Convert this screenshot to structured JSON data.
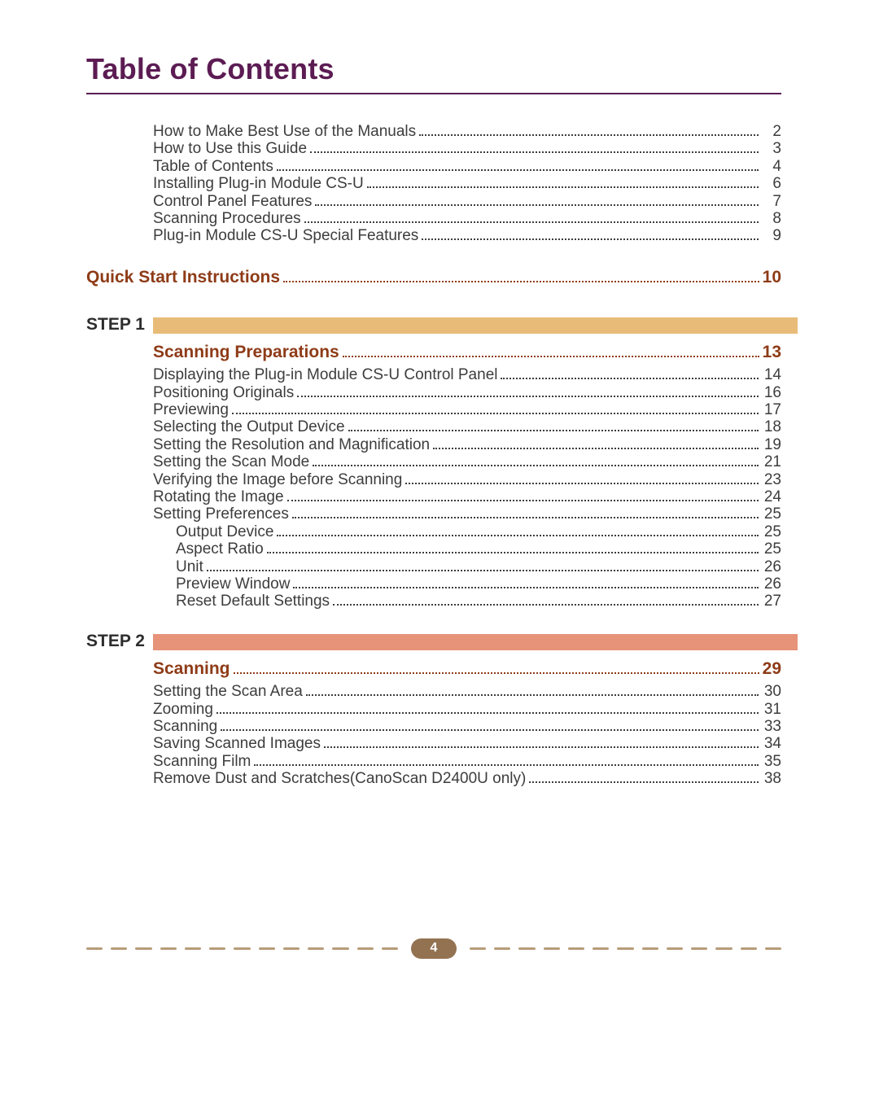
{
  "colors": {
    "title": "#5c1c53",
    "rule": "#5c1c53",
    "body_text": "#3d3d3d",
    "section_text": "#8e3b17",
    "step1_bar": "#e8bc78",
    "step2_bar": "#e6937a",
    "dash": "#b79c78",
    "badge_bg": "#937252",
    "badge_text": "#ffffff"
  },
  "title": "Table of Contents",
  "intro": [
    {
      "label": "How to Make Best Use of the Manuals",
      "page": "2"
    },
    {
      "label": "How to Use this Guide",
      "page": "3"
    },
    {
      "label": "Table of Contents",
      "page": "4"
    },
    {
      "label": "Installing Plug-in Module CS-U",
      "page": "6"
    },
    {
      "label": "Control Panel Features",
      "page": "7"
    },
    {
      "label": "Scanning Procedures",
      "page": "8"
    },
    {
      "label": "Plug-in Module CS-U Special Features",
      "page": "9"
    }
  ],
  "quick_start": {
    "label": "Quick Start Instructions",
    "page": "10"
  },
  "step1": {
    "label": "STEP 1",
    "section": {
      "label": "Scanning Preparations",
      "page": "13"
    },
    "items": [
      {
        "label": "Displaying the Plug-in Module CS-U Control Panel",
        "page": "14",
        "indent": 0
      },
      {
        "label": "Positioning Originals",
        "page": "16",
        "indent": 0
      },
      {
        "label": "Previewing",
        "page": "17",
        "indent": 0
      },
      {
        "label": "Selecting the Output Device",
        "page": "18",
        "indent": 0
      },
      {
        "label": "Setting the Resolution and Magnification",
        "page": "19",
        "indent": 0
      },
      {
        "label": "Setting the Scan Mode",
        "page": "21",
        "indent": 0
      },
      {
        "label": "Verifying the Image before Scanning",
        "page": "23",
        "indent": 0
      },
      {
        "label": "Rotating the Image",
        "page": "24",
        "indent": 0
      },
      {
        "label": "Setting Preferences",
        "page": "25",
        "indent": 0
      },
      {
        "label": "Output Device",
        "page": "25",
        "indent": 1
      },
      {
        "label": "Aspect Ratio",
        "page": "25",
        "indent": 1
      },
      {
        "label": "Unit",
        "page": "26",
        "indent": 1
      },
      {
        "label": "Preview Window",
        "page": "26",
        "indent": 1
      },
      {
        "label": "Reset Default Settings",
        "page": "27",
        "indent": 1
      }
    ]
  },
  "step2": {
    "label": "STEP 2",
    "section": {
      "label": "Scanning",
      "page": "29"
    },
    "items": [
      {
        "label": "Setting the Scan Area",
        "page": "30",
        "indent": 0
      },
      {
        "label": "Zooming",
        "page": "31",
        "indent": 0
      },
      {
        "label": "Scanning",
        "page": "33",
        "indent": 0
      },
      {
        "label": "Saving Scanned Images",
        "page": "34",
        "indent": 0
      },
      {
        "label": "Scanning Film",
        "page": "35",
        "indent": 0
      },
      {
        "label": "Remove Dust and Scratches(CanoScan D2400U only)",
        "page": "38",
        "indent": 0
      }
    ]
  },
  "page_number": "4"
}
